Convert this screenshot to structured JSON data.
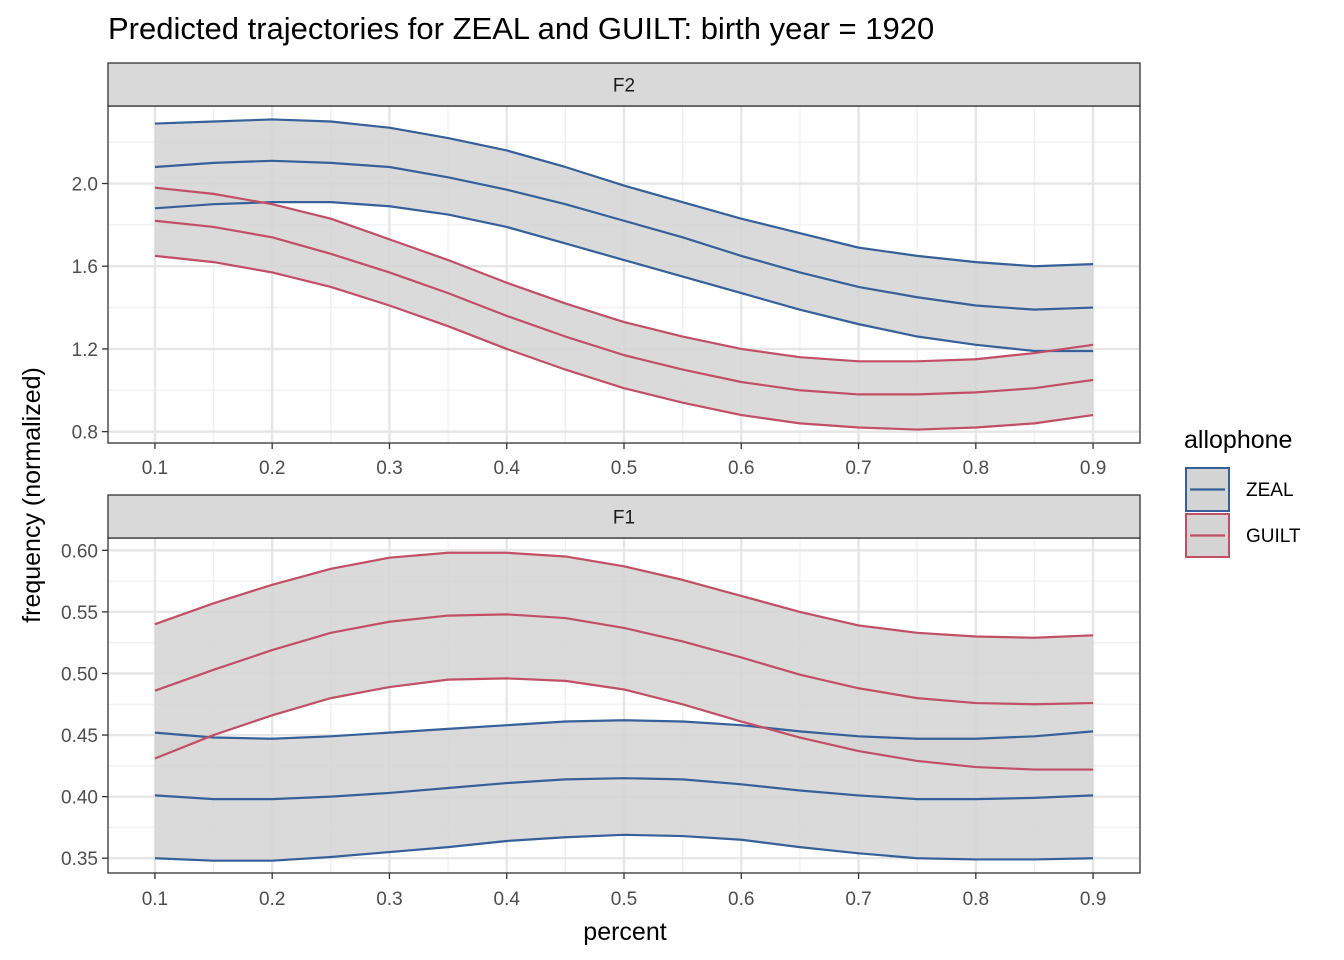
{
  "chart_data": {
    "type": "line",
    "title": "Predicted trajectories for ZEAL and GUILT: birth year = 1920",
    "xlabel": "percent",
    "ylabel": "frequency (normalized)",
    "legend": {
      "title": "allophone",
      "position": "right",
      "entries": [
        {
          "label": "ZEAL",
          "color": "#35609a"
        },
        {
          "label": "GUILT",
          "color": "#c14f66"
        }
      ]
    },
    "grid": true,
    "band_fill": "#d4d4d4",
    "x_ticks": [
      "0.1",
      "0.2",
      "0.3",
      "0.4",
      "0.5",
      "0.6",
      "0.7",
      "0.8",
      "0.9"
    ],
    "panels": [
      {
        "strip": "F2",
        "xlim": [
          0.06,
          0.94
        ],
        "ylim": [
          0.745,
          2.375
        ],
        "y_ticks": [
          {
            "value": 0.8,
            "label": "0.8"
          },
          {
            "value": 1.2,
            "label": "1.2"
          },
          {
            "value": 1.6,
            "label": "1.6"
          },
          {
            "value": 2.0,
            "label": "2.0"
          }
        ],
        "x": [
          0.1,
          0.15,
          0.2,
          0.25,
          0.3,
          0.35,
          0.4,
          0.45,
          0.5,
          0.55,
          0.6,
          0.65,
          0.7,
          0.75,
          0.8,
          0.85,
          0.9
        ],
        "series": [
          {
            "name": "ZEAL",
            "color": "#35609a",
            "fit": [
              2.08,
              2.1,
              2.11,
              2.1,
              2.08,
              2.03,
              1.97,
              1.9,
              1.82,
              1.74,
              1.65,
              1.57,
              1.5,
              1.45,
              1.41,
              1.39,
              1.4
            ],
            "upper": [
              2.29,
              2.3,
              2.31,
              2.3,
              2.27,
              2.22,
              2.16,
              2.08,
              1.99,
              1.91,
              1.83,
              1.76,
              1.69,
              1.65,
              1.62,
              1.6,
              1.61
            ],
            "lower": [
              1.88,
              1.9,
              1.91,
              1.91,
              1.89,
              1.85,
              1.79,
              1.71,
              1.63,
              1.55,
              1.47,
              1.39,
              1.32,
              1.26,
              1.22,
              1.19,
              1.19
            ]
          },
          {
            "name": "GUILT",
            "color": "#c14f66",
            "fit": [
              1.82,
              1.79,
              1.74,
              1.66,
              1.57,
              1.47,
              1.36,
              1.26,
              1.17,
              1.1,
              1.04,
              1.0,
              0.98,
              0.98,
              0.99,
              1.01,
              1.05
            ],
            "upper": [
              1.98,
              1.95,
              1.9,
              1.83,
              1.73,
              1.63,
              1.52,
              1.42,
              1.33,
              1.26,
              1.2,
              1.16,
              1.14,
              1.14,
              1.15,
              1.18,
              1.22
            ],
            "lower": [
              1.65,
              1.62,
              1.57,
              1.5,
              1.41,
              1.31,
              1.2,
              1.1,
              1.01,
              0.94,
              0.88,
              0.84,
              0.82,
              0.81,
              0.82,
              0.84,
              0.88
            ]
          }
        ]
      },
      {
        "strip": "F1",
        "xlim": [
          0.06,
          0.94
        ],
        "ylim": [
          0.338,
          0.61
        ],
        "y_ticks": [
          {
            "value": 0.35,
            "label": "0.35"
          },
          {
            "value": 0.4,
            "label": "0.40"
          },
          {
            "value": 0.45,
            "label": "0.45"
          },
          {
            "value": 0.5,
            "label": "0.50"
          },
          {
            "value": 0.55,
            "label": "0.55"
          },
          {
            "value": 0.6,
            "label": "0.60"
          }
        ],
        "x": [
          0.1,
          0.15,
          0.2,
          0.25,
          0.3,
          0.35,
          0.4,
          0.45,
          0.5,
          0.55,
          0.6,
          0.65,
          0.7,
          0.75,
          0.8,
          0.85,
          0.9
        ],
        "series": [
          {
            "name": "ZEAL",
            "color": "#35609a",
            "fit": [
              0.401,
              0.398,
              0.398,
              0.4,
              0.403,
              0.407,
              0.411,
              0.414,
              0.415,
              0.414,
              0.41,
              0.405,
              0.401,
              0.398,
              0.398,
              0.399,
              0.401
            ],
            "upper": [
              0.452,
              0.448,
              0.447,
              0.449,
              0.452,
              0.455,
              0.458,
              0.461,
              0.462,
              0.461,
              0.458,
              0.453,
              0.449,
              0.447,
              0.447,
              0.449,
              0.453
            ],
            "lower": [
              0.35,
              0.348,
              0.348,
              0.351,
              0.355,
              0.359,
              0.364,
              0.367,
              0.369,
              0.368,
              0.365,
              0.359,
              0.354,
              0.35,
              0.349,
              0.349,
              0.35
            ]
          },
          {
            "name": "GUILT",
            "color": "#c14f66",
            "fit": [
              0.486,
              0.503,
              0.519,
              0.533,
              0.542,
              0.547,
              0.548,
              0.545,
              0.537,
              0.526,
              0.513,
              0.499,
              0.488,
              0.48,
              0.476,
              0.475,
              0.476
            ],
            "upper": [
              0.54,
              0.557,
              0.572,
              0.585,
              0.594,
              0.598,
              0.598,
              0.595,
              0.587,
              0.576,
              0.563,
              0.55,
              0.539,
              0.533,
              0.53,
              0.529,
              0.531
            ],
            "lower": [
              0.431,
              0.45,
              0.466,
              0.48,
              0.489,
              0.495,
              0.496,
              0.494,
              0.487,
              0.475,
              0.461,
              0.448,
              0.437,
              0.429,
              0.424,
              0.422,
              0.422
            ]
          }
        ]
      }
    ]
  }
}
